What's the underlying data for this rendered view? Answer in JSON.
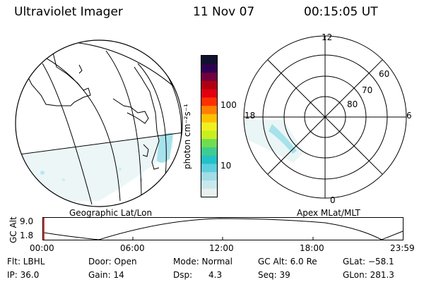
{
  "header": {
    "instrument": "Ultraviolet Imager",
    "date": "11 Nov 07",
    "time": "00:15:05 UT"
  },
  "geo_panel": {
    "label": "Geographic Lat/Lon"
  },
  "color_bar": {
    "unit_label": "photon cm⁻²s⁻¹",
    "tick_labels": [
      "100",
      "10"
    ],
    "colors": [
      "#e8f0f0",
      "#c8e8ec",
      "#a0dde6",
      "#5ecfdc",
      "#22c2c8",
      "#40cc90",
      "#70dd50",
      "#c8ee20",
      "#f0f020",
      "#ffc000",
      "#ff8000",
      "#ff3000",
      "#e00010",
      "#b00010",
      "#700040",
      "#300050",
      "#101030"
    ]
  },
  "polar_panel": {
    "label": "Apex MLat/MLT",
    "mlt_labels": {
      "top": "12",
      "right": "6",
      "bottom": "0",
      "left": "18"
    },
    "lat_labels": [
      "60",
      "70",
      "80"
    ]
  },
  "timeline": {
    "y_axis_label": "GC Alt",
    "y_ticks": [
      "9.0",
      "1.8"
    ],
    "x_ticks": [
      "00:00",
      "06:00",
      "12:00",
      "18:00",
      "23:59"
    ]
  },
  "status": {
    "row1": {
      "flt": "Flt: LBHL",
      "door": "Door: Open",
      "mode": "Mode: Normal",
      "gc_alt": "GC Alt: 6.0 Re",
      "glat": "GLat: −58.1"
    },
    "row2": {
      "ip": "IP: 36.0",
      "gain": "Gain: 14",
      "dsp": "Dsp:      4.3",
      "seq": "Seq: 39",
      "glon": "GLon: 281.3"
    }
  }
}
